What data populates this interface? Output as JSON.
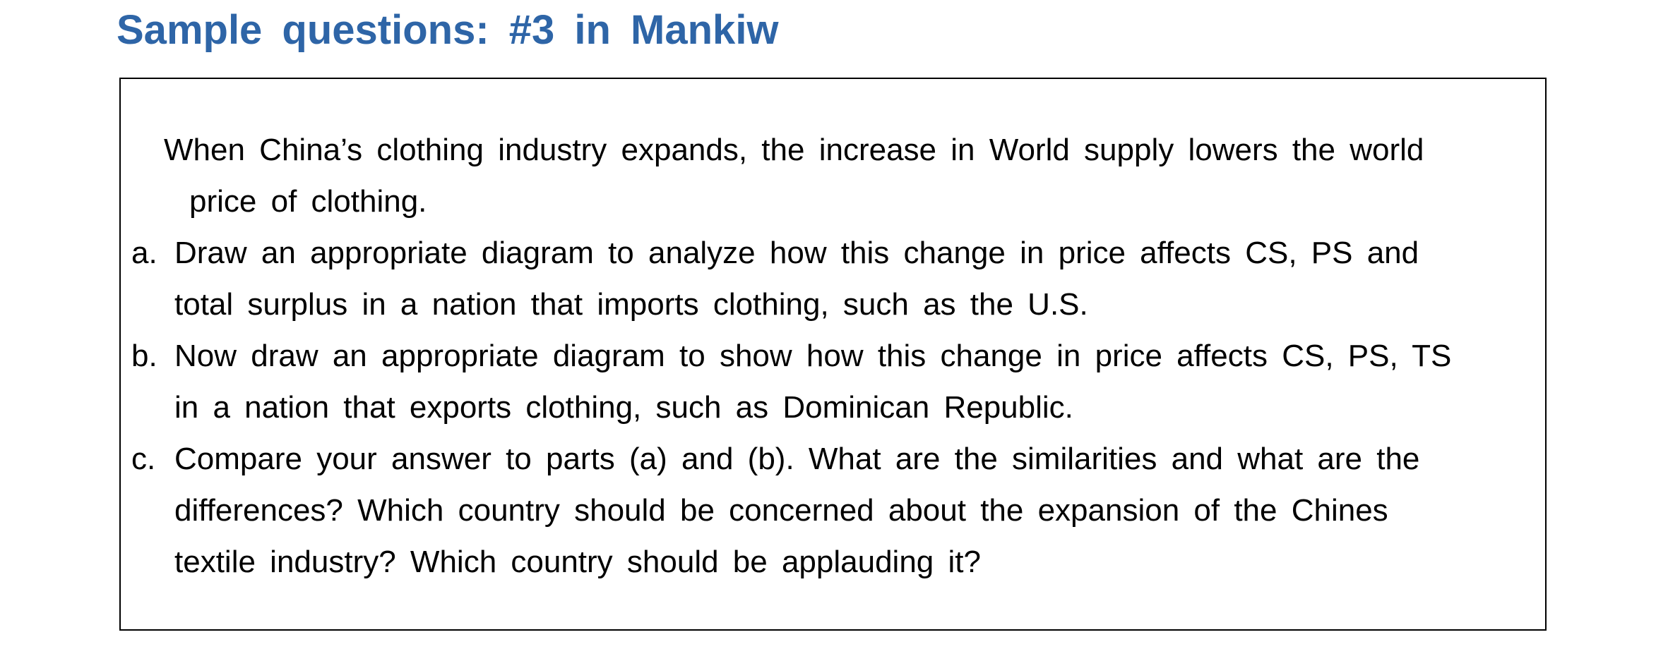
{
  "title": "Sample questions: #3 in Mankiw",
  "question": {
    "intro": [
      "When China’s clothing industry expands, the increase in World supply lowers the world",
      "price of clothing."
    ],
    "parts": [
      {
        "marker": "a.",
        "lines": [
          "Draw an appropriate diagram to analyze how this change in price affects CS, PS and",
          "total surplus in a nation that imports clothing, such as the U.S."
        ]
      },
      {
        "marker": "b.",
        "lines": [
          "Now draw an appropriate diagram to show how this change in price affects CS, PS, TS",
          "in a nation that exports clothing, such as Dominican Republic."
        ]
      },
      {
        "marker": "c.",
        "lines": [
          "Compare your answer to parts (a) and (b). What are the similarities and what are the",
          "differences? Which country should be concerned about the expansion of the Chines",
          "textile industry? Which country should be applauding it?"
        ]
      }
    ]
  }
}
